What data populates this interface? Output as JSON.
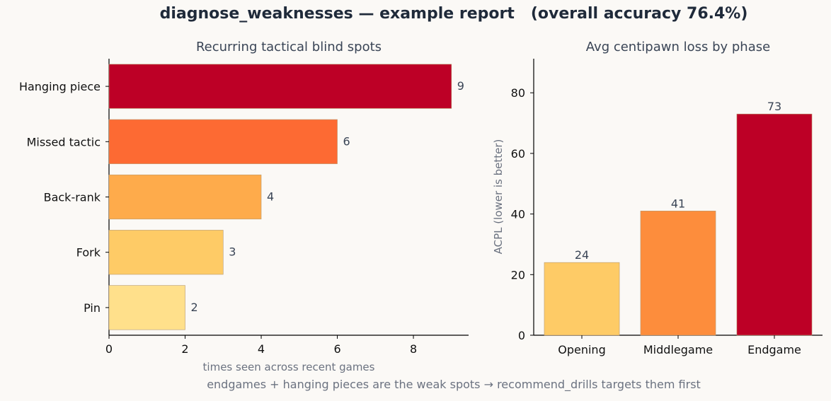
{
  "suptitle": "diagnose_weaknesses — example report   (overall accuracy 76.4%)",
  "footer_note": "endgames + hanging pieces are the weak spots → recommend_drills targets them first",
  "chart_data": [
    {
      "type": "bar",
      "orientation": "horizontal",
      "title": "Recurring tactical blind spots",
      "xlabel": "times seen across recent games",
      "ylabel": "",
      "categories": [
        "Hanging piece",
        "Missed tactic",
        "Back-rank",
        "Fork",
        "Pin"
      ],
      "values": [
        9,
        6,
        4,
        3,
        2
      ],
      "xlim": [
        0,
        9.45
      ],
      "xticks": [
        0,
        2,
        4,
        6,
        8
      ],
      "data_labels": [
        "9",
        "6",
        "4",
        "3",
        "2"
      ],
      "colors": [
        "#bd0026",
        "#fd6a33",
        "#feab4b",
        "#fecb66",
        "#ffe08b"
      ],
      "grid": false
    },
    {
      "type": "bar",
      "title": "Avg centipawn loss by phase",
      "xlabel": "",
      "ylabel": "ACPL (lower is better)",
      "categories": [
        "Opening",
        "Middlegame",
        "Endgame"
      ],
      "values": [
        24,
        41,
        73
      ],
      "ylim": [
        0,
        91.25
      ],
      "yticks": [
        0,
        20,
        40,
        60,
        80
      ],
      "data_labels": [
        "24",
        "41",
        "73"
      ],
      "colors": [
        "#fecb66",
        "#fd8d3c",
        "#bd0026"
      ],
      "grid": false
    }
  ]
}
